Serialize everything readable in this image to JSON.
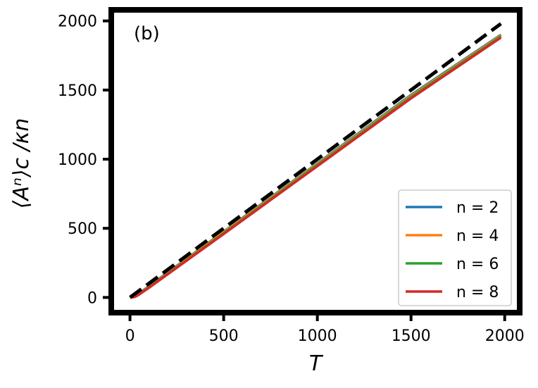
{
  "chart_data": {
    "type": "line",
    "panel_label": "(b)",
    "xlabel": "T",
    "ylabel": "⟨Aⁿ⟩c /κn",
    "xlim": [
      -100,
      2080
    ],
    "ylim": [
      -110,
      2080
    ],
    "x_ticks": [
      0,
      500,
      1000,
      1500,
      2000
    ],
    "y_ticks": [
      0,
      500,
      1000,
      1500,
      2000
    ],
    "grid": false,
    "legend_position": "lower-right",
    "series": [
      {
        "name": "n = 2",
        "color": "#1f77b4",
        "style": "solid",
        "x": [
          1,
          10,
          20,
          30,
          50,
          100,
          500,
          1000,
          1500,
          1980
        ],
        "y": [
          0,
          1,
          5,
          12,
          31,
          81,
          476,
          970,
          1465,
          1900
        ]
      },
      {
        "name": "n = 4",
        "color": "#ff7f0e",
        "style": "solid",
        "x": [
          1,
          10,
          20,
          30,
          50,
          100,
          500,
          1000,
          1500,
          1980
        ],
        "y": [
          0,
          1,
          4,
          10,
          28,
          77,
          472,
          965,
          1458,
          1895
        ]
      },
      {
        "name": "n = 6",
        "color": "#2ca02c",
        "style": "solid",
        "x": [
          1,
          10,
          20,
          30,
          50,
          100,
          500,
          1000,
          1500,
          1980
        ],
        "y": [
          0,
          1,
          3,
          8,
          25,
          73,
          465,
          958,
          1450,
          1888
        ]
      },
      {
        "name": "n = 8",
        "color": "#d62728",
        "style": "solid",
        "x": [
          1,
          10,
          20,
          30,
          50,
          100,
          500,
          1000,
          1500,
          1980
        ],
        "y": [
          0,
          0,
          2,
          6,
          22,
          69,
          459,
          950,
          1440,
          1880
        ]
      },
      {
        "color": "#000000",
        "style": "dashed",
        "x": [
          0,
          1980
        ],
        "y": [
          0,
          1980
        ]
      }
    ]
  }
}
